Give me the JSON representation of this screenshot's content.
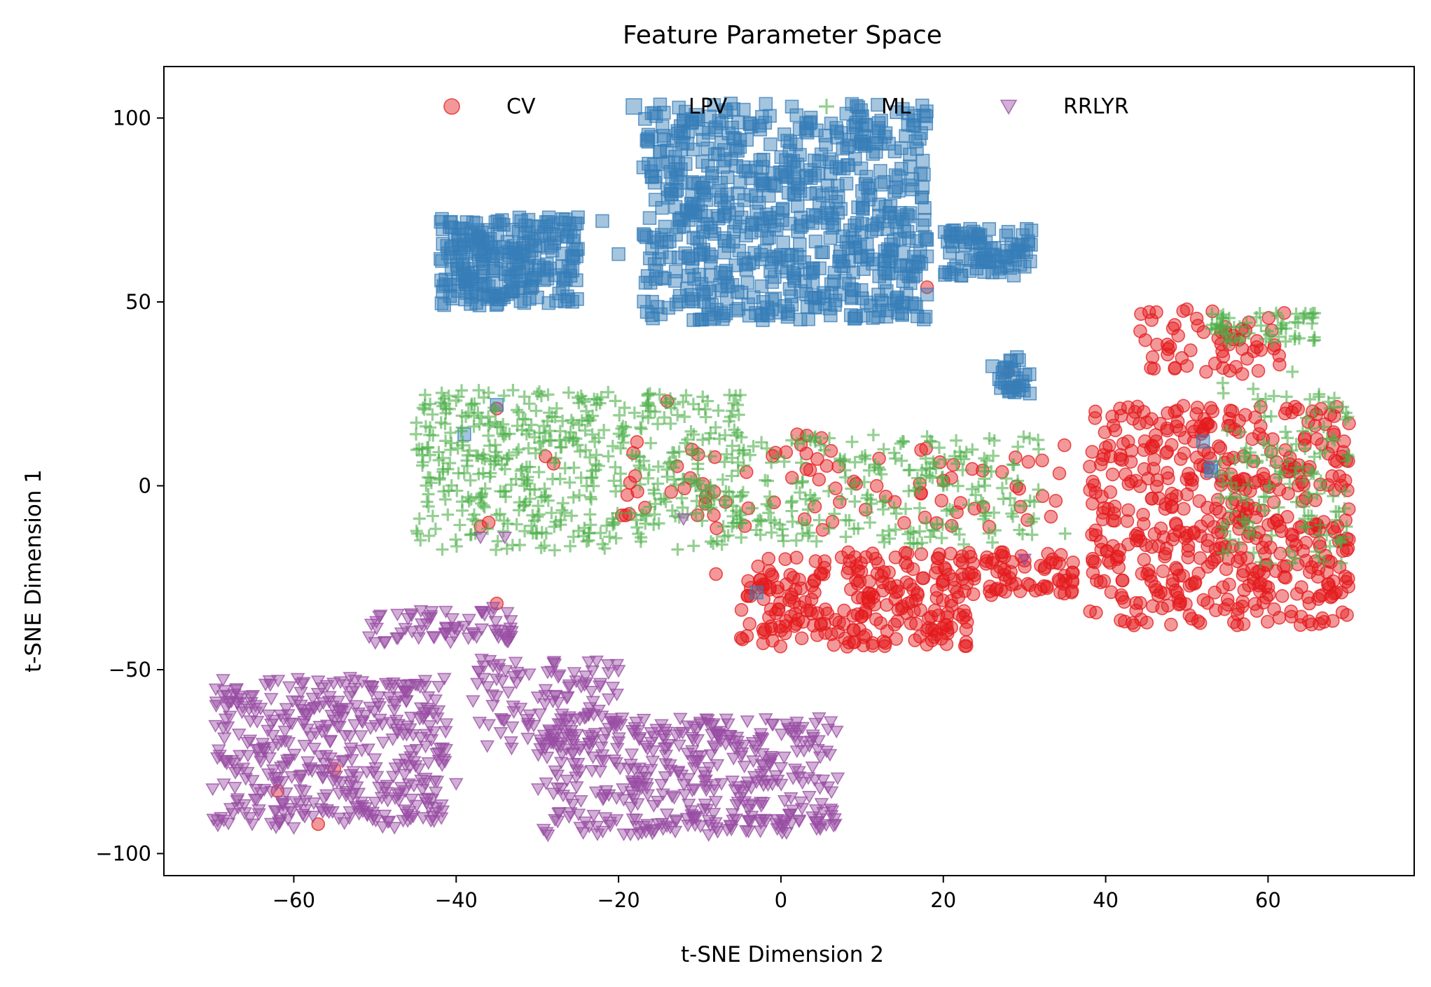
{
  "chart_data": {
    "type": "scatter",
    "title": "Feature Parameter Space",
    "xlabel": "t-SNE Dimension 2",
    "ylabel": "t-SNE Dimension 1",
    "xlim": [
      -76,
      78
    ],
    "ylim": [
      -106,
      114
    ],
    "xticks": [
      -60,
      -40,
      -20,
      0,
      20,
      40,
      60
    ],
    "yticks": [
      100,
      50,
      0,
      -50,
      -100
    ],
    "xtick_labels": [
      "−60",
      "−40",
      "−20",
      "0",
      "20",
      "40",
      "60"
    ],
    "ytick_labels": [
      "100",
      "50",
      "0",
      "−50",
      "−100"
    ],
    "grid": false,
    "legend_placement": "upper-center",
    "series": [
      {
        "name": "CV",
        "marker": "circle",
        "color": "#e41a1c",
        "clusters": [
          {
            "x": [
              38,
              70
            ],
            "y": [
              -38,
              22
            ],
            "n": 520
          },
          {
            "x": [
              44,
              62
            ],
            "y": [
              30,
              48
            ],
            "n": 60
          },
          {
            "x": [
              -5,
              24
            ],
            "y": [
              -44,
              -18
            ],
            "n": 260
          },
          {
            "x": [
              25,
              36
            ],
            "y": [
              -30,
              -18
            ],
            "n": 60
          },
          {
            "x": [
              -20,
              35
            ],
            "y": [
              -12,
              14
            ],
            "n": 90
          }
        ],
        "points": [
          [
            -62,
            -83
          ],
          [
            -55,
            -77
          ],
          [
            -57,
            -92
          ],
          [
            -35,
            -32
          ],
          [
            -35,
            21
          ],
          [
            -14,
            23
          ],
          [
            -8,
            -24
          ],
          [
            -37,
            -11
          ],
          [
            -36,
            -10
          ],
          [
            -29,
            8
          ],
          [
            -28,
            6
          ],
          [
            28,
            31
          ],
          [
            29,
            27
          ],
          [
            18,
            54
          ],
          [
            50,
            48
          ],
          [
            62,
            47
          ],
          [
            5,
            13
          ],
          [
            2,
            14
          ]
        ]
      },
      {
        "name": "LPV",
        "marker": "square",
        "color": "#377eb8",
        "clusters": [
          {
            "x": [
              -42,
              -25
            ],
            "y": [
              49,
              73
            ],
            "n": 260
          },
          {
            "x": [
              -17,
              18
            ],
            "y": [
              45,
              104
            ],
            "n": 720
          },
          {
            "x": [
              20,
              31
            ],
            "y": [
              57,
              70
            ],
            "n": 90
          },
          {
            "x": [
              26,
              31
            ],
            "y": [
              25,
              35
            ],
            "n": 30
          }
        ],
        "points": [
          [
            -39,
            14
          ],
          [
            -35,
            22
          ],
          [
            -3,
            -29
          ],
          [
            52,
            12
          ],
          [
            53,
            5
          ],
          [
            53,
            4
          ],
          [
            -25,
            73
          ],
          [
            -22,
            72
          ],
          [
            -20,
            63
          ],
          [
            12,
            52
          ],
          [
            10,
            51
          ],
          [
            18,
            52
          ],
          [
            13,
            46
          ]
        ]
      },
      {
        "name": "ML",
        "marker": "plus",
        "color": "#4daf4a",
        "clusters": [
          {
            "x": [
              -45,
              -5
            ],
            "y": [
              -18,
              26
            ],
            "n": 520
          },
          {
            "x": [
              -5,
              32
            ],
            "y": [
              -16,
              14
            ],
            "n": 230
          },
          {
            "x": [
              54,
              70
            ],
            "y": [
              -22,
              28
            ],
            "n": 140
          },
          {
            "x": [
              53,
              66
            ],
            "y": [
              39,
              47
            ],
            "n": 60
          }
        ],
        "points": [
          [
            -33,
            26
          ],
          [
            -30,
            25
          ],
          [
            12,
            5
          ],
          [
            20,
            0
          ],
          [
            35,
            -13
          ],
          [
            55,
            -10
          ],
          [
            63,
            31
          ]
        ]
      },
      {
        "name": "RRLYR",
        "marker": "triangle-down",
        "color": "#984ea3",
        "clusters": [
          {
            "x": [
              -70,
              -41
            ],
            "y": [
              -93,
              -52
            ],
            "n": 430
          },
          {
            "x": [
              -52,
              -33
            ],
            "y": [
              -43,
              -33
            ],
            "n": 70
          },
          {
            "x": [
              -38,
              -20
            ],
            "y": [
              -72,
              -47
            ],
            "n": 120
          },
          {
            "x": [
              -30,
              7
            ],
            "y": [
              -95,
              -63
            ],
            "n": 420
          }
        ],
        "points": [
          [
            -37,
            -14
          ],
          [
            -34,
            -14
          ],
          [
            -12,
            -9
          ],
          [
            30,
            -20
          ],
          [
            -63,
            -74
          ],
          [
            -60,
            -93
          ],
          [
            -40,
            -81
          ]
        ]
      }
    ]
  }
}
